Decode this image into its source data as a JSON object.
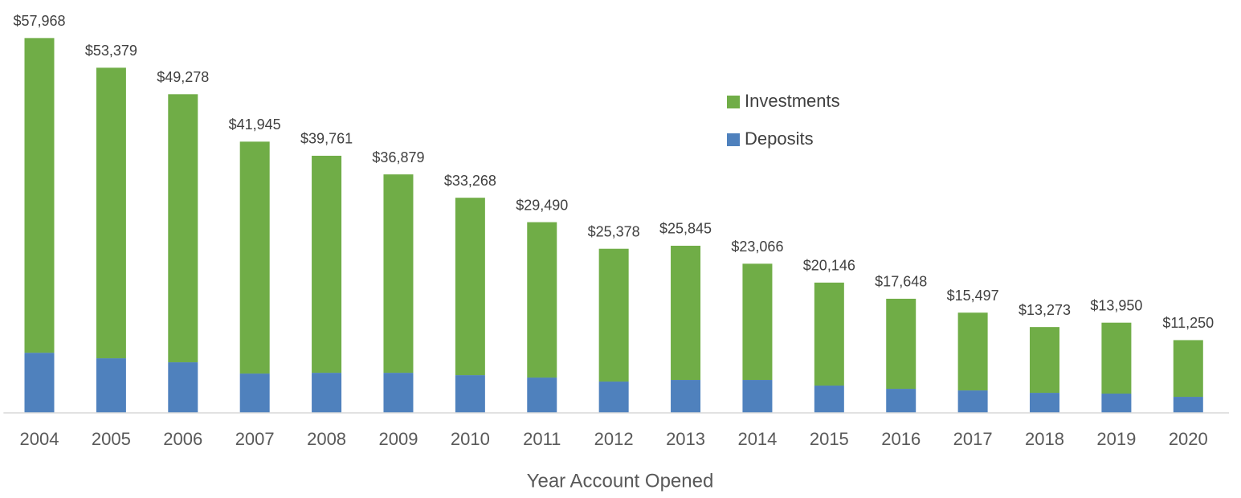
{
  "chart_data": {
    "type": "stacked_bar",
    "x_label": "Year Account Opened",
    "categories": [
      "2004",
      "2005",
      "2006",
      "2007",
      "2008",
      "2009",
      "2010",
      "2011",
      "2012",
      "2013",
      "2014",
      "2015",
      "2016",
      "2017",
      "2018",
      "2019",
      "2020"
    ],
    "series": [
      {
        "name": "Deposits",
        "color": "#4f81bd",
        "values": [
          9300,
          8440,
          7820,
          6080,
          6200,
          6200,
          5830,
          5460,
          4840,
          5090,
          5090,
          4220,
          3720,
          3470,
          3100,
          2980,
          2480
        ]
      },
      {
        "name": "Investments",
        "color": "#70ad47",
        "values": [
          48668,
          44939,
          41458,
          35865,
          33561,
          30679,
          27438,
          24030,
          20538,
          20755,
          17976,
          15926,
          13928,
          12027,
          10173,
          10970,
          8770
        ]
      }
    ],
    "total_labels": [
      "$57,968",
      "$53,379",
      "$49,278",
      "$41,945",
      "$39,761",
      "$36,879",
      "$33,268",
      "$29,490",
      "$25,378",
      "$25,845",
      "$23,066",
      "$20,146",
      "$17,648",
      "$15,497",
      "$13,273",
      "$13,950",
      "$11,250"
    ],
    "ylim": [
      0,
      60000
    ],
    "legend": "upper-right"
  }
}
